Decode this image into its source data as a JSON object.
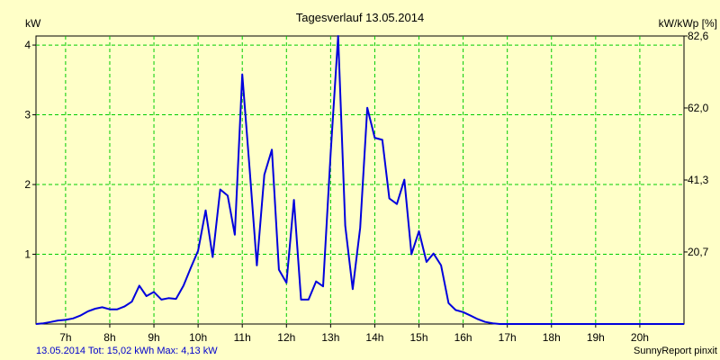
{
  "chart_data": {
    "type": "line",
    "title": "Tagesverlauf 13.05.2014",
    "ylabel_left": "kW",
    "ylabel_right": "kW/kWp [%]",
    "xlim": [
      6.33,
      21.0
    ],
    "ylim": [
      0,
      4.13
    ],
    "x_ticks": [
      {
        "value": 7,
        "label": "7h"
      },
      {
        "value": 8,
        "label": "8h"
      },
      {
        "value": 9,
        "label": "9h"
      },
      {
        "value": 10,
        "label": "10h"
      },
      {
        "value": 11,
        "label": "11h"
      },
      {
        "value": 12,
        "label": "12h"
      },
      {
        "value": 13,
        "label": "13h"
      },
      {
        "value": 14,
        "label": "14h"
      },
      {
        "value": 15,
        "label": "15h"
      },
      {
        "value": 16,
        "label": "16h"
      },
      {
        "value": 17,
        "label": "17h"
      },
      {
        "value": 18,
        "label": "18h"
      },
      {
        "value": 19,
        "label": "19h"
      },
      {
        "value": 20,
        "label": "20h"
      }
    ],
    "y_ticks_left": [
      {
        "value": 1,
        "label": "1"
      },
      {
        "value": 2,
        "label": "2"
      },
      {
        "value": 3,
        "label": "3"
      },
      {
        "value": 4,
        "label": "4"
      }
    ],
    "y_ticks_right": [
      {
        "value": 1.033,
        "label": "20,7"
      },
      {
        "value": 2.065,
        "label": "41,3"
      },
      {
        "value": 3.098,
        "label": "62,0"
      },
      {
        "value": 4.13,
        "label": "82,6"
      }
    ],
    "grid": true,
    "colors": {
      "line": "#0000dd",
      "grid": "#00cc00",
      "background": "#ffffc8"
    },
    "series": [
      {
        "x": [
          6.33,
          6.5,
          6.67,
          6.83,
          7.0,
          7.17,
          7.33,
          7.5,
          7.67,
          7.83,
          8.0,
          8.17,
          8.33,
          8.5,
          8.67,
          8.83,
          9.0,
          9.17,
          9.33,
          9.5,
          9.67,
          9.83,
          10.0,
          10.17,
          10.33,
          10.5,
          10.67,
          10.83,
          11.0,
          11.17,
          11.33,
          11.5,
          11.67,
          11.83,
          12.0,
          12.17,
          12.33,
          12.5,
          12.67,
          12.83,
          13.0,
          13.17,
          13.33,
          13.5,
          13.67,
          13.83,
          14.0,
          14.17,
          14.33,
          14.5,
          14.67,
          14.83,
          15.0,
          15.17,
          15.33,
          15.5,
          15.67,
          15.83,
          16.0,
          16.17,
          16.33,
          16.5,
          16.67,
          16.83,
          17.0,
          17.17,
          17.33,
          17.5,
          17.67,
          17.83,
          18.0,
          18.17,
          18.33,
          18.5,
          18.67,
          18.83,
          19.0,
          19.17,
          19.33,
          19.5,
          19.67,
          19.83,
          20.0,
          20.17,
          20.33,
          20.5,
          20.67,
          20.83,
          21.0
        ],
        "y": [
          0.0,
          0.01,
          0.03,
          0.05,
          0.06,
          0.08,
          0.12,
          0.18,
          0.22,
          0.24,
          0.21,
          0.21,
          0.25,
          0.32,
          0.55,
          0.4,
          0.46,
          0.35,
          0.37,
          0.36,
          0.55,
          0.8,
          1.05,
          1.63,
          0.96,
          1.93,
          1.84,
          1.28,
          3.58,
          2.2,
          0.84,
          2.14,
          2.5,
          0.78,
          0.59,
          1.78,
          0.35,
          0.35,
          0.61,
          0.54,
          2.45,
          4.13,
          1.41,
          0.5,
          1.38,
          3.1,
          2.67,
          2.64,
          1.8,
          1.72,
          2.07,
          1.0,
          1.33,
          0.89,
          1.01,
          0.84,
          0.3,
          0.2,
          0.17,
          0.12,
          0.07,
          0.03,
          0.01,
          0.0,
          0.0,
          0.0,
          0.0,
          0.0,
          0.0,
          0.0,
          0.0,
          0.0,
          0.0,
          0.0,
          0.0,
          0.0,
          0.0,
          0.0,
          0.0,
          0.0,
          0.0,
          0.0,
          0.0,
          0.0,
          0.0,
          0.0,
          0.0,
          0.0,
          0.0
        ]
      }
    ]
  },
  "footer": {
    "stats": "13.05.2014 Tot: 15,02 kWh Max: 4,13 kW",
    "brand": "SunnyReport pinxit"
  }
}
